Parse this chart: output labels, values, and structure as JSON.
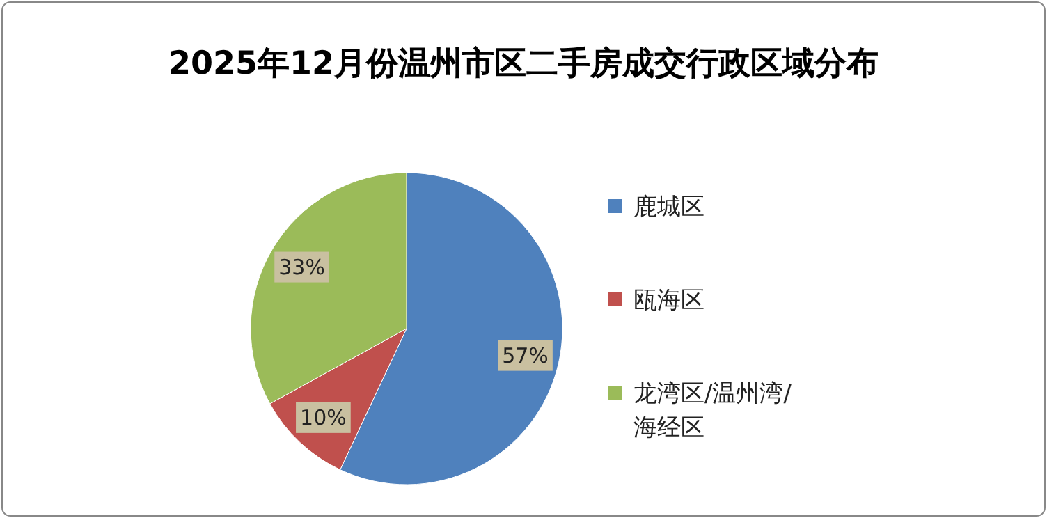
{
  "chart_data": {
    "type": "pie",
    "title": "2025年12月份温州市区二手房成交行政区域分布",
    "categories": [
      "鹿城区",
      "瓯海区",
      "龙湾区/温州湾/海经区"
    ],
    "values": [
      57,
      10,
      33
    ],
    "colors": [
      "#4f81bd",
      "#c0504d",
      "#9bbb59"
    ],
    "value_labels": [
      "57%",
      "10%",
      "33%"
    ],
    "legend": "right"
  }
}
